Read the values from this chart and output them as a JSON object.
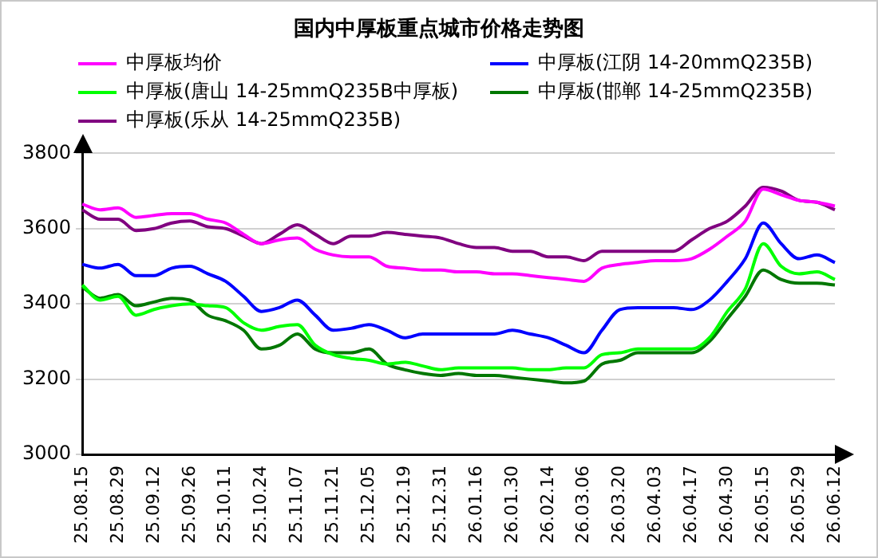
{
  "chart_data": {
    "type": "line",
    "title": "国内中厚板重点城市价格走势图",
    "categories": [
      "25.08.15",
      null,
      "25.08.29",
      null,
      "25.09.12",
      null,
      "25.09.26",
      null,
      "25.10.11",
      null,
      "25.10.24",
      null,
      "25.11.07",
      null,
      "25.11.21",
      null,
      "25.12.05",
      null,
      "25.12.19",
      null,
      "25.12.31",
      null,
      "26.01.16",
      null,
      "26.01.30",
      null,
      "26.02.14",
      null,
      "26.03.06",
      null,
      "26.03.20",
      null,
      "26.04.03",
      null,
      "26.04.17",
      null,
      "26.04.30",
      null,
      "26.05.15",
      null,
      "26.05.29",
      null,
      "26.06.12"
    ],
    "series": [
      {
        "name": "中厚板均价",
        "color": "#ff00ff",
        "values": [
          3665,
          3650,
          3655,
          3630,
          3635,
          3640,
          3640,
          3625,
          3615,
          3585,
          3560,
          3570,
          3575,
          3545,
          3530,
          3525,
          3525,
          3500,
          3495,
          3490,
          3490,
          3485,
          3485,
          3480,
          3480,
          3475,
          3470,
          3465,
          3460,
          3495,
          3505,
          3510,
          3515,
          3515,
          3520,
          3545,
          3580,
          3620,
          3705,
          3690,
          3675,
          3670,
          3660
        ]
      },
      {
        "name": "中厚板(江阴 14-20mmQ235B)",
        "color": "#0000ff",
        "values": [
          3505,
          3495,
          3505,
          3475,
          3475,
          3495,
          3500,
          3480,
          3460,
          3420,
          3380,
          3390,
          3410,
          3370,
          3330,
          3335,
          3345,
          3330,
          3310,
          3320,
          3320,
          3320,
          3320,
          3320,
          3330,
          3320,
          3310,
          3290,
          3270,
          3330,
          3385,
          3390,
          3390,
          3390,
          3385,
          3410,
          3460,
          3520,
          3615,
          3560,
          3520,
          3530,
          3510
        ]
      },
      {
        "name": "中厚板(唐山 14-25mmQ235B中厚板)",
        "color": "#00ff00",
        "values": [
          3450,
          3410,
          3420,
          3370,
          3385,
          3395,
          3400,
          3395,
          3390,
          3350,
          3330,
          3340,
          3345,
          3290,
          3265,
          3255,
          3250,
          3240,
          3245,
          3235,
          3225,
          3230,
          3230,
          3230,
          3230,
          3225,
          3225,
          3230,
          3230,
          3265,
          3270,
          3280,
          3280,
          3280,
          3280,
          3310,
          3380,
          3440,
          3560,
          3500,
          3480,
          3485,
          3465
        ]
      },
      {
        "name": "中厚板(邯郸 14-25mmQ235B)",
        "color": "#007700",
        "values": [
          3445,
          3415,
          3425,
          3395,
          3405,
          3415,
          3410,
          3370,
          3355,
          3330,
          3280,
          3290,
          3320,
          3280,
          3270,
          3270,
          3280,
          3240,
          3225,
          3215,
          3210,
          3215,
          3210,
          3210,
          3205,
          3200,
          3195,
          3190,
          3195,
          3240,
          3250,
          3270,
          3270,
          3270,
          3270,
          3300,
          3360,
          3420,
          3490,
          3465,
          3455,
          3455,
          3450
        ]
      },
      {
        "name": "中厚板(乐从 14-25mmQ235B)",
        "color": "#800080",
        "values": [
          3650,
          3625,
          3625,
          3595,
          3600,
          3615,
          3620,
          3605,
          3600,
          3580,
          3560,
          3585,
          3610,
          3585,
          3560,
          3580,
          3580,
          3590,
          3585,
          3580,
          3575,
          3560,
          3550,
          3550,
          3540,
          3540,
          3525,
          3525,
          3515,
          3540,
          3540,
          3540,
          3540,
          3540,
          3570,
          3600,
          3620,
          3660,
          3710,
          3700,
          3675,
          3670,
          3650
        ]
      }
    ],
    "ylim": [
      3000,
      3800
    ],
    "yticks": [
      3000,
      3200,
      3400,
      3600,
      3800
    ],
    "grid": "y",
    "legend": "top",
    "marker": "none",
    "line_style": "solid"
  }
}
